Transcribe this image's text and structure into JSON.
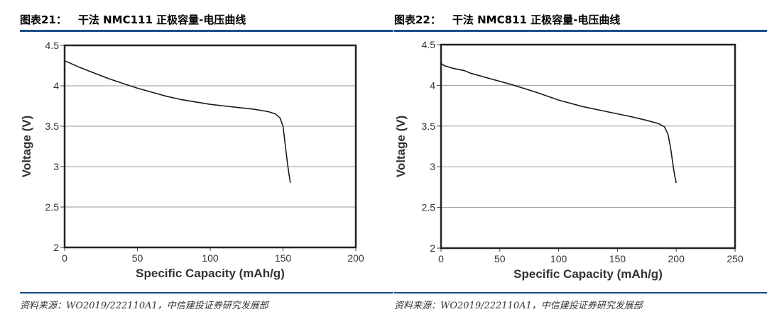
{
  "charts": [
    {
      "fig_number": "图表21：",
      "fig_title": "干法 NMC111 正极容量-电压曲线",
      "source": "资料来源：WO2019/222110A1，中信建投证券研究发展部"
    },
    {
      "fig_number": "图表22：",
      "fig_title": "干法 NMC811 正极容量-电压曲线",
      "source": "资料来源：WO2019/222110A1，中信建投证券研究发展部"
    }
  ],
  "chart_data": [
    {
      "type": "line",
      "title": "干法 NMC111 正极容量-电压曲线",
      "xlabel": "Specific Capacity (mAh/g)",
      "ylabel": "Voltage (V)",
      "xlim": [
        0,
        200
      ],
      "ylim": [
        2,
        4.5
      ],
      "x_ticks": [
        0,
        50,
        100,
        150,
        200
      ],
      "x_tick_labels": [
        "0",
        "50",
        "100",
        "150",
        "200"
      ],
      "y_ticks": [
        2,
        2.5,
        3,
        3.5,
        4,
        4.5
      ],
      "y_tick_labels": [
        "2",
        "2.5",
        "3",
        "3.5",
        "4",
        "4.5"
      ],
      "grid": "horizontal",
      "series": [
        {
          "name": "NMC111",
          "x": [
            0,
            5,
            10,
            20,
            30,
            40,
            50,
            60,
            70,
            80,
            90,
            100,
            110,
            120,
            130,
            140,
            145,
            148,
            150,
            151,
            152,
            153,
            154,
            155
          ],
          "y": [
            4.31,
            4.27,
            4.23,
            4.16,
            4.09,
            4.03,
            3.97,
            3.92,
            3.87,
            3.83,
            3.8,
            3.77,
            3.75,
            3.73,
            3.71,
            3.68,
            3.65,
            3.6,
            3.5,
            3.35,
            3.2,
            3.05,
            2.92,
            2.8
          ]
        }
      ]
    },
    {
      "type": "line",
      "title": "干法 NMC811 正极容量-电压曲线",
      "xlabel": "Specific Capacity (mAh/g)",
      "ylabel": "Voltage (V)",
      "xlim": [
        0,
        250
      ],
      "ylim": [
        2,
        4.5
      ],
      "x_ticks": [
        0,
        50,
        100,
        150,
        200,
        250
      ],
      "x_tick_labels": [
        "0",
        "50",
        "100",
        "150",
        "200",
        "250"
      ],
      "y_ticks": [
        2,
        2.5,
        3,
        3.5,
        4,
        4.5
      ],
      "y_tick_labels": [
        "2",
        "2.5",
        "3",
        "3.5",
        "4",
        "4.5"
      ],
      "grid": "horizontal",
      "series": [
        {
          "name": "NMC811",
          "x": [
            0,
            3,
            10,
            20,
            25,
            40,
            60,
            80,
            100,
            120,
            140,
            160,
            175,
            185,
            190,
            193,
            195,
            196,
            197,
            198,
            199,
            200
          ],
          "y": [
            4.27,
            4.24,
            4.21,
            4.18,
            4.15,
            4.09,
            4.01,
            3.92,
            3.82,
            3.74,
            3.68,
            3.62,
            3.57,
            3.53,
            3.49,
            3.4,
            3.25,
            3.15,
            3.05,
            2.95,
            2.87,
            2.8
          ]
        }
      ]
    }
  ]
}
